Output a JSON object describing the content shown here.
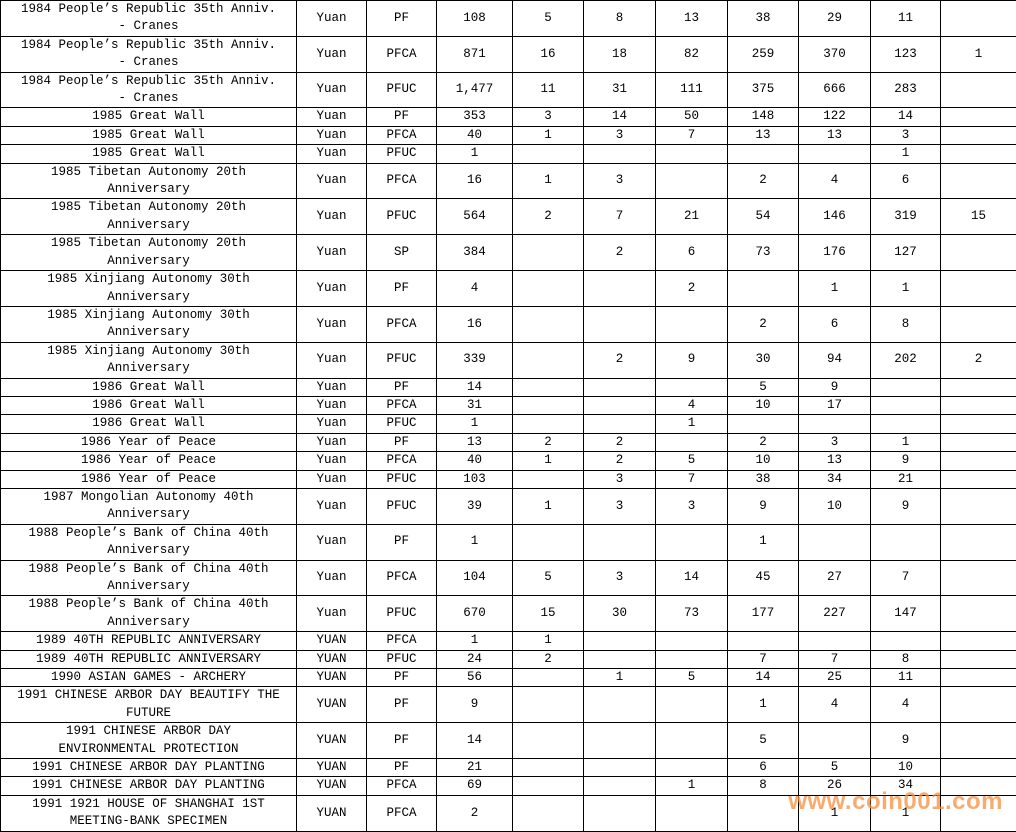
{
  "watermark": {
    "text": "www.coin001.com",
    "color": "#F78F3F"
  },
  "table": {
    "grid_color": "#000000",
    "text_color": "#000000",
    "rows": [
      {
        "description": "1984 People’s Republic 35th Anniv.\n- Cranes",
        "currency": "Yuan",
        "grade": "PF",
        "values": [
          "108",
          "5",
          "8",
          "13",
          "38",
          "29",
          "11",
          ""
        ]
      },
      {
        "description": "1984 People’s Republic 35th Anniv.\n- Cranes",
        "currency": "Yuan",
        "grade": "PFCA",
        "values": [
          "871",
          "16",
          "18",
          "82",
          "259",
          "370",
          "123",
          "1"
        ]
      },
      {
        "description": "1984 People’s Republic 35th Anniv.\n- Cranes",
        "currency": "Yuan",
        "grade": "PFUC",
        "values": [
          "1,477",
          "11",
          "31",
          "111",
          "375",
          "666",
          "283",
          ""
        ]
      },
      {
        "description": "1985 Great Wall",
        "currency": "Yuan",
        "grade": "PF",
        "values": [
          "353",
          "3",
          "14",
          "50",
          "148",
          "122",
          "14",
          ""
        ]
      },
      {
        "description": "1985 Great Wall",
        "currency": "Yuan",
        "grade": "PFCA",
        "values": [
          "40",
          "1",
          "3",
          "7",
          "13",
          "13",
          "3",
          ""
        ]
      },
      {
        "description": "1985 Great Wall",
        "currency": "Yuan",
        "grade": "PFUC",
        "values": [
          "1",
          "",
          "",
          "",
          "",
          "",
          "1",
          ""
        ]
      },
      {
        "description": "1985 Tibetan Autonomy 20th\nAnniversary",
        "currency": "Yuan",
        "grade": "PFCA",
        "values": [
          "16",
          "1",
          "3",
          "",
          "2",
          "4",
          "6",
          ""
        ]
      },
      {
        "description": "1985 Tibetan Autonomy 20th\nAnniversary",
        "currency": "Yuan",
        "grade": "PFUC",
        "values": [
          "564",
          "2",
          "7",
          "21",
          "54",
          "146",
          "319",
          "15"
        ]
      },
      {
        "description": "1985 Tibetan Autonomy 20th\nAnniversary",
        "currency": "Yuan",
        "grade": "SP",
        "values": [
          "384",
          "",
          "2",
          "6",
          "73",
          "176",
          "127",
          ""
        ]
      },
      {
        "description": "1985 Xinjiang Autonomy 30th\nAnniversary",
        "currency": "Yuan",
        "grade": "PF",
        "values": [
          "4",
          "",
          "",
          "2",
          "",
          "1",
          "1",
          ""
        ]
      },
      {
        "description": "1985 Xinjiang Autonomy 30th\nAnniversary",
        "currency": "Yuan",
        "grade": "PFCA",
        "values": [
          "16",
          "",
          "",
          "",
          "2",
          "6",
          "8",
          ""
        ]
      },
      {
        "description": "1985 Xinjiang Autonomy 30th\nAnniversary",
        "currency": "Yuan",
        "grade": "PFUC",
        "values": [
          "339",
          "",
          "2",
          "9",
          "30",
          "94",
          "202",
          "2"
        ]
      },
      {
        "description": "1986 Great Wall",
        "currency": "Yuan",
        "grade": "PF",
        "values": [
          "14",
          "",
          "",
          "",
          "5",
          "9",
          "",
          ""
        ]
      },
      {
        "description": "1986 Great Wall",
        "currency": "Yuan",
        "grade": "PFCA",
        "values": [
          "31",
          "",
          "",
          "4",
          "10",
          "17",
          "",
          ""
        ]
      },
      {
        "description": "1986 Great Wall",
        "currency": "Yuan",
        "grade": "PFUC",
        "values": [
          "1",
          "",
          "",
          "1",
          "",
          "",
          "",
          ""
        ]
      },
      {
        "description": "1986 Year of Peace",
        "currency": "Yuan",
        "grade": "PF",
        "values": [
          "13",
          "2",
          "2",
          "",
          "2",
          "3",
          "1",
          ""
        ]
      },
      {
        "description": "1986 Year of Peace",
        "currency": "Yuan",
        "grade": "PFCA",
        "values": [
          "40",
          "1",
          "2",
          "5",
          "10",
          "13",
          "9",
          ""
        ]
      },
      {
        "description": "1986 Year of Peace",
        "currency": "Yuan",
        "grade": "PFUC",
        "values": [
          "103",
          "",
          "3",
          "7",
          "38",
          "34",
          "21",
          ""
        ]
      },
      {
        "description": "1987 Mongolian Autonomy 40th\nAnniversary",
        "currency": "Yuan",
        "grade": "PFUC",
        "values": [
          "39",
          "1",
          "3",
          "3",
          "9",
          "10",
          "9",
          ""
        ]
      },
      {
        "description": "1988 People’s Bank of China 40th\nAnniversary",
        "currency": "Yuan",
        "grade": "PF",
        "values": [
          "1",
          "",
          "",
          "",
          "1",
          "",
          "",
          ""
        ]
      },
      {
        "description": "1988 People’s Bank of China 40th\nAnniversary",
        "currency": "Yuan",
        "grade": "PFCA",
        "values": [
          "104",
          "5",
          "3",
          "14",
          "45",
          "27",
          "7",
          ""
        ]
      },
      {
        "description": "1988 People’s Bank of China 40th\nAnniversary",
        "currency": "Yuan",
        "grade": "PFUC",
        "values": [
          "670",
          "15",
          "30",
          "73",
          "177",
          "227",
          "147",
          ""
        ]
      },
      {
        "description": "1989 40TH REPUBLIC ANNIVERSARY",
        "currency": "YUAN",
        "grade": "PFCA",
        "values": [
          "1",
          "1",
          "",
          "",
          "",
          "",
          "",
          ""
        ]
      },
      {
        "description": "1989 40TH REPUBLIC ANNIVERSARY",
        "currency": "YUAN",
        "grade": "PFUC",
        "values": [
          "24",
          "2",
          "",
          "",
          "7",
          "7",
          "8",
          ""
        ]
      },
      {
        "description": "1990 ASIAN GAMES - ARCHERY",
        "currency": "YUAN",
        "grade": "PF",
        "values": [
          "56",
          "",
          "1",
          "5",
          "14",
          "25",
          "11",
          ""
        ]
      },
      {
        "description": "1991 CHINESE ARBOR DAY BEAUTIFY THE\nFUTURE",
        "currency": "YUAN",
        "grade": "PF",
        "values": [
          "9",
          "",
          "",
          "",
          "1",
          "4",
          "4",
          ""
        ]
      },
      {
        "description": "1991 CHINESE ARBOR DAY\nENVIRONMENTAL PROTECTION",
        "currency": "YUAN",
        "grade": "PF",
        "values": [
          "14",
          "",
          "",
          "",
          "5",
          "",
          "9",
          ""
        ]
      },
      {
        "description": "1991 CHINESE ARBOR DAY PLANTING",
        "currency": "YUAN",
        "grade": "PF",
        "values": [
          "21",
          "",
          "",
          "",
          "6",
          "5",
          "10",
          ""
        ]
      },
      {
        "description": "1991 CHINESE ARBOR DAY PLANTING",
        "currency": "YUAN",
        "grade": "PFCA",
        "values": [
          "69",
          "",
          "",
          "1",
          "8",
          "26",
          "34",
          ""
        ]
      },
      {
        "description": "1991 1921 HOUSE OF SHANGHAI 1ST\nMEETING-BANK SPECIMEN",
        "currency": "YUAN",
        "grade": "PFCA",
        "values": [
          "2",
          "",
          "",
          "",
          "",
          "1",
          "1",
          ""
        ]
      }
    ]
  }
}
